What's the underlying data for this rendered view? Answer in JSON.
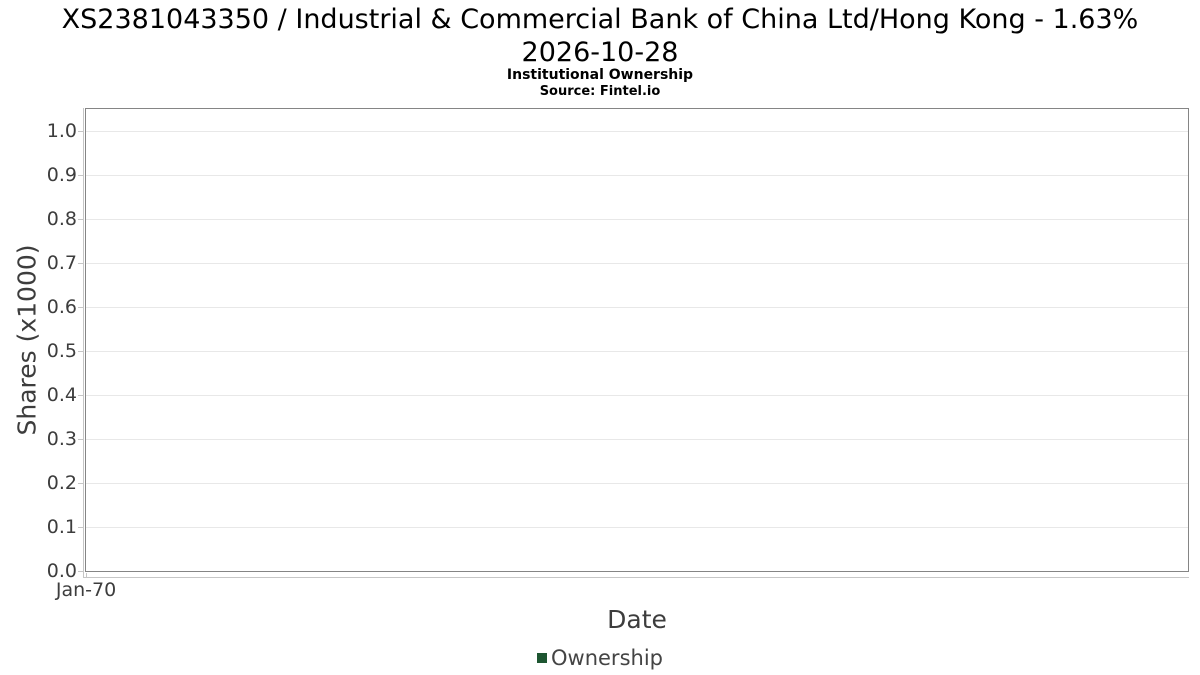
{
  "chart_data": {
    "type": "line",
    "title_lines": [
      "XS2381043350 / Industrial & Commercial Bank of China Ltd/Hong Kong - 1.63%",
      "2026-10-28"
    ],
    "subtitle": "Institutional Ownership",
    "source": "Source: Fintel.io",
    "xlabel": "Date",
    "ylabel": "Shares (x1000)",
    "x_tick_labels": [
      "Jan-70"
    ],
    "y_tick_values": [
      1.0,
      0.9,
      0.8,
      0.7,
      0.6,
      0.5,
      0.4,
      0.3,
      0.2,
      0.1,
      0.0
    ],
    "y_tick_labels": [
      "1.0",
      "0.9",
      "0.8",
      "0.7",
      "0.6",
      "0.5",
      "0.4",
      "0.3",
      "0.2",
      "0.1",
      "0.0"
    ],
    "ylim": [
      0,
      1.05
    ],
    "grid": true,
    "legend": {
      "position": "bottom-center",
      "entries": [
        {
          "label": "Ownership",
          "color": "#1e5631",
          "marker": "square"
        }
      ]
    },
    "series": [
      {
        "name": "Ownership",
        "data": []
      }
    ]
  },
  "colors": {
    "background": "#ffffff",
    "title_text": "#000000",
    "axis_text": "#3d3d3d",
    "plot_border": "#858585",
    "gridline": "#e8e8e8",
    "axis_line": "#c6c6c6",
    "ownership_green": "#1e5631"
  }
}
